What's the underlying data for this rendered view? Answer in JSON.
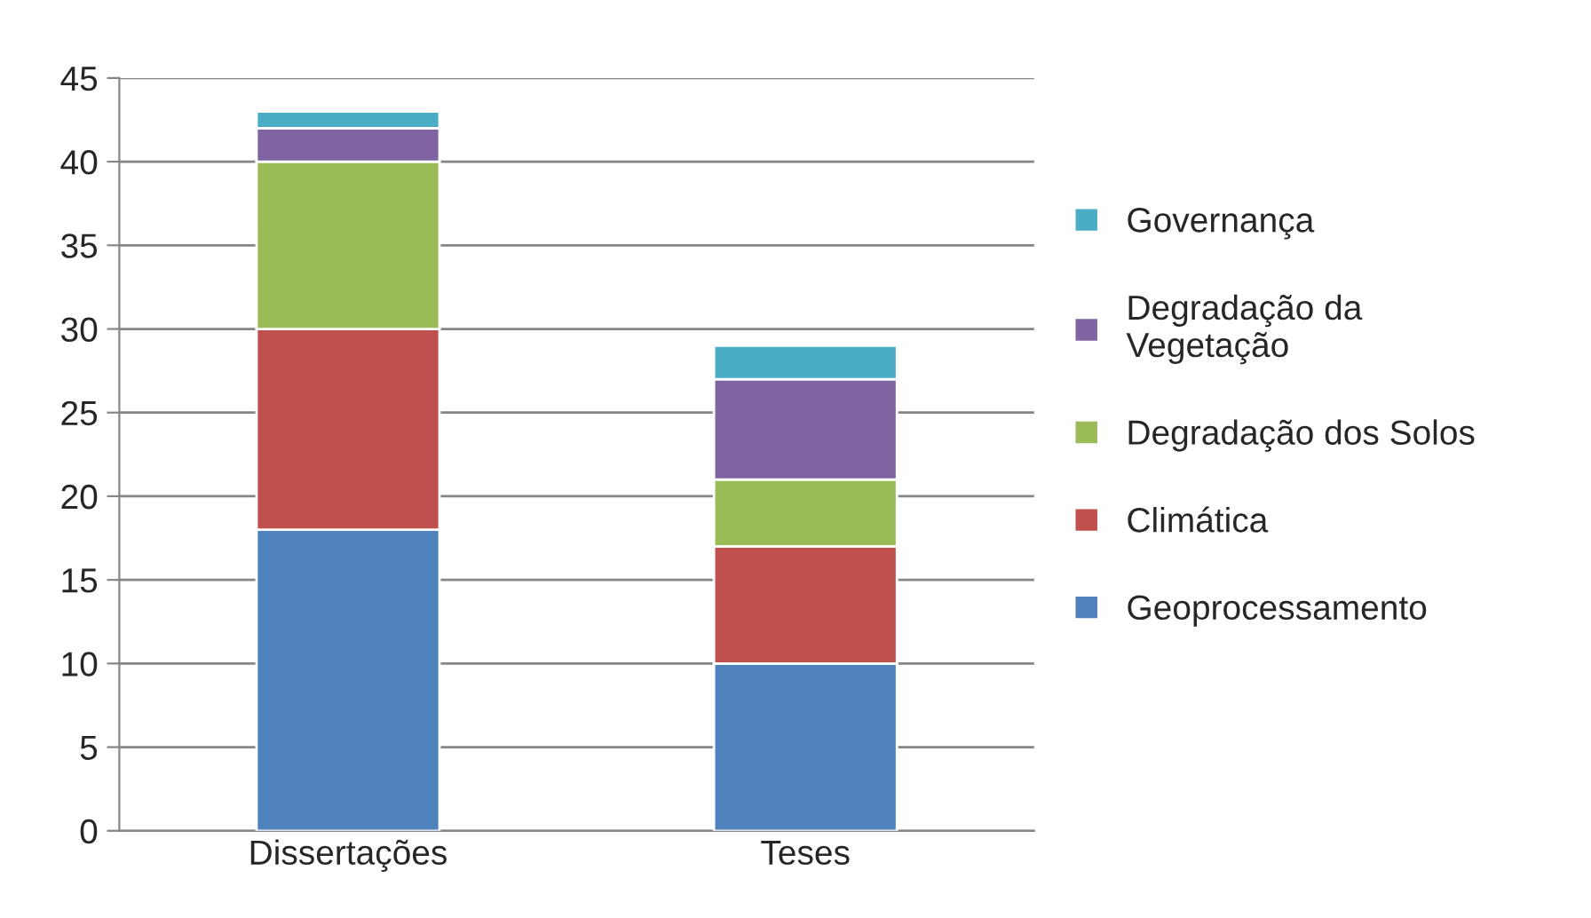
{
  "chart_data": {
    "type": "bar",
    "stacked": true,
    "categories": [
      "Dissertações",
      "Teses"
    ],
    "series": [
      {
        "name": "Geoprocessamento",
        "color": "#4f81bd",
        "values": [
          18,
          10
        ]
      },
      {
        "name": "Climática",
        "color": "#c0504d",
        "values": [
          12,
          7
        ]
      },
      {
        "name": "Degradação dos Solos",
        "color": "#9bbb59",
        "values": [
          10,
          4
        ]
      },
      {
        "name": "Degradação da\nVegetação",
        "color": "#8064a2",
        "values": [
          2,
          6
        ]
      },
      {
        "name": "Governança",
        "color": "#4bacc6",
        "values": [
          1,
          2
        ]
      }
    ],
    "ylim": [
      0,
      45
    ],
    "yticks": [
      0,
      5,
      10,
      15,
      20,
      25,
      30,
      35,
      40,
      45
    ],
    "grid": "y",
    "legend": "right"
  }
}
